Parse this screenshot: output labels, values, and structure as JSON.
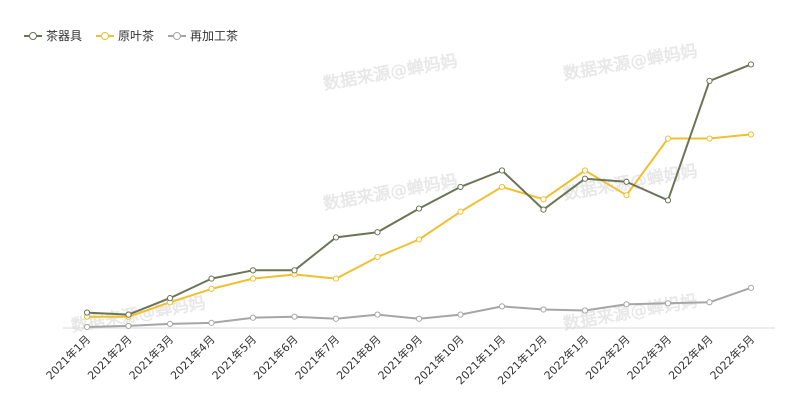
{
  "watermark": "数据来源@蝉妈妈",
  "chart_data": {
    "type": "line",
    "categories": [
      "2021年1月",
      "2021年2月",
      "2021年3月",
      "2021年4月",
      "2021年5月",
      "2021年6月",
      "2021年7月",
      "2021年8月",
      "2021年9月",
      "2021年10月",
      "2021年11月",
      "2021年12月",
      "2022年1月",
      "2022年2月",
      "2022年3月",
      "2022年4月",
      "2022年5月"
    ],
    "series": [
      {
        "name": "茶器具",
        "color": "#6b7556",
        "values": [
          15,
          13,
          29,
          48,
          56,
          56,
          88,
          93,
          116,
          137,
          153,
          115,
          145,
          142,
          124,
          240,
          256
        ]
      },
      {
        "name": "原叶茶",
        "color": "#f0c030",
        "values": [
          11,
          11,
          25,
          38,
          48,
          52,
          48,
          69,
          86,
          113,
          137,
          125,
          153,
          129,
          184,
          184,
          188
        ]
      },
      {
        "name": "再加工茶",
        "color": "#a6a6a6",
        "values": [
          1,
          2,
          4,
          5,
          10,
          11,
          9,
          13,
          9,
          13,
          21,
          18,
          17,
          23,
          24,
          25,
          39
        ]
      }
    ],
    "ylim": [
      0,
      270
    ],
    "grid": false,
    "legend": "top-left",
    "title": "",
    "xlabel": "",
    "ylabel": ""
  }
}
